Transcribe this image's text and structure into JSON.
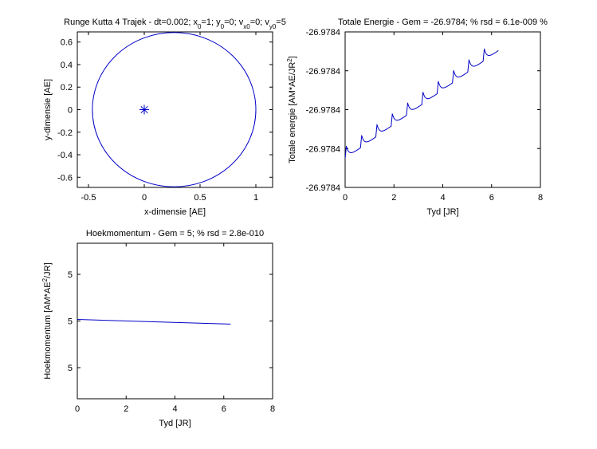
{
  "colors": {
    "series": "#0000c8",
    "axis": "#000000",
    "background": "#ffffff"
  },
  "chart_data": [
    {
      "id": "trajectory",
      "type": "line",
      "title": "Runge Kutta 4 Trajek - dt=0.002; x₀=1; y₀=0; vₓ₀=0; vᵧ₀=5",
      "title_parts": [
        {
          "t": "Runge Kutta 4 Trajek - dt=0.002; x"
        },
        {
          "t": "0",
          "sub": true
        },
        {
          "t": "=1; y"
        },
        {
          "t": "0",
          "sub": true
        },
        {
          "t": "=0; v"
        },
        {
          "t": "x0",
          "sub": true
        },
        {
          "t": "=0; v"
        },
        {
          "t": "y0",
          "sub": true
        },
        {
          "t": "=5"
        }
      ],
      "xlabel": "x-dimensie [AE]",
      "ylabel": "y-dimensie [AE]",
      "xlim": [
        -0.6,
        1.15
      ],
      "ylim": [
        -0.69,
        0.69
      ],
      "xticks": [
        -0.5,
        0,
        0.5,
        1
      ],
      "xtick_labels": [
        "-0.5",
        "0",
        "0.5",
        "1"
      ],
      "yticks": [
        -0.6,
        -0.4,
        -0.2,
        0,
        0.2,
        0.4,
        0.6
      ],
      "ytick_labels": [
        "-0.6",
        "-0.4",
        "-0.2",
        "0",
        "0.2",
        "0.4",
        "0.6"
      ],
      "ellipse": {
        "center_x": 0.2675,
        "center_y": 0,
        "semi_major": 0.7325,
        "semi_minor": 0.6845
      },
      "marker": {
        "x": 0,
        "y": 0,
        "symbol": "*"
      },
      "grid": false
    },
    {
      "id": "energy",
      "type": "line",
      "title": "Totale Energie - Gem = -26.9784; % rsd = 6.1e-009 %",
      "title_parts": [
        {
          "t": "Totale Energie - Gem = -26.9784; % rsd = 6.1e-009 %"
        }
      ],
      "xlabel": "Tyd [JR]",
      "ylabel": "Totale energie [AM*AE/JR²]",
      "ylabel_parts": [
        {
          "t": "Totale energie [AM*AE/JR"
        },
        {
          "t": "2",
          "sup": true
        },
        {
          "t": "]"
        }
      ],
      "xlim": [
        0,
        8
      ],
      "ylim": [
        0,
        1
      ],
      "xticks": [
        0,
        2,
        4,
        6,
        8
      ],
      "xtick_labels": [
        "0",
        "2",
        "4",
        "6",
        "8"
      ],
      "yticks": [
        0,
        0.25,
        0.5,
        0.75,
        1
      ],
      "ytick_labels": [
        "-26.9784",
        "-26.9784",
        "-26.9784",
        "-26.9784",
        "-26.9784"
      ],
      "series_model": {
        "t_end": 6.28,
        "y_start": 0.215,
        "y_end": 0.91,
        "period": 0.628,
        "bump": 0.075
      },
      "grid": false
    },
    {
      "id": "momentum",
      "type": "line",
      "title": "Hoekmomentum - Gem = 5; % rsd = 2.8e-010",
      "title_parts": [
        {
          "t": "Hoekmomentum - Gem = 5; % rsd = 2.8e-010"
        }
      ],
      "xlabel": "Tyd [JR]",
      "ylabel": "Hoekmomentum [AM*AE²/JR]",
      "ylabel_parts": [
        {
          "t": "Hoekmomentum [AM*AE"
        },
        {
          "t": "2",
          "sup": true
        },
        {
          "t": "/JR]"
        }
      ],
      "xlim": [
        0,
        8
      ],
      "ylim": [
        0,
        1
      ],
      "xticks": [
        0,
        2,
        4,
        6,
        8
      ],
      "xtick_labels": [
        "0",
        "2",
        "4",
        "6",
        "8"
      ],
      "yticks": [
        0.2,
        0.5,
        0.8
      ],
      "ytick_labels": [
        "5",
        "5",
        "5"
      ],
      "x": [
        0,
        6.28
      ],
      "y": [
        0.51,
        0.48
      ],
      "grid": false
    }
  ]
}
